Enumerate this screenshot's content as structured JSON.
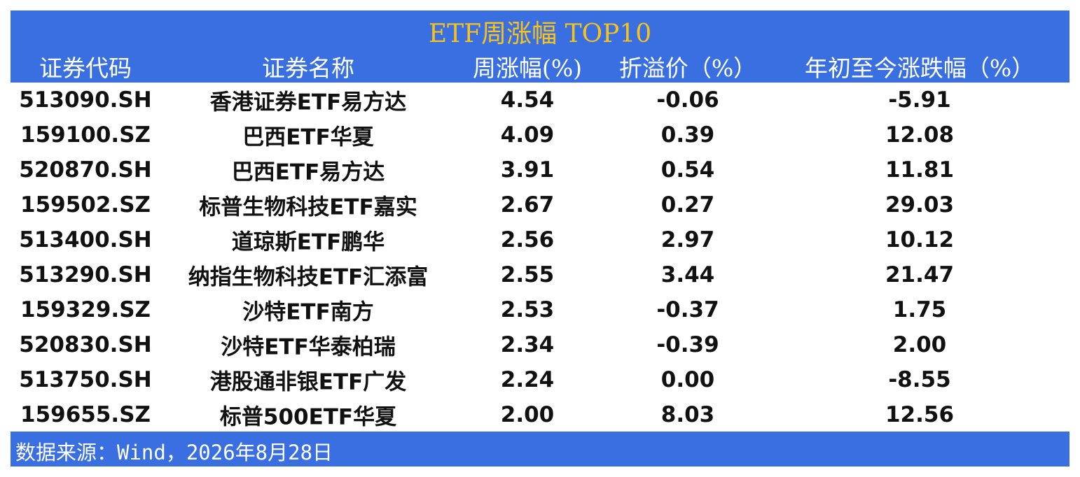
{
  "header": {
    "title": "ETF周涨幅 TOP10"
  },
  "table": {
    "columns": [
      "证券代码",
      "证券名称",
      "周涨幅(%)",
      "折溢价（%）",
      "年初至今涨跌幅（%）"
    ],
    "rows": [
      [
        "513090.SH",
        "香港证券ETF易方达",
        "4.54",
        "-0.06",
        "-5.91"
      ],
      [
        "159100.SZ",
        "巴西ETF华夏",
        "4.09",
        "0.39",
        "12.08"
      ],
      [
        "520870.SH",
        "巴西ETF易方达",
        "3.91",
        "0.54",
        "11.81"
      ],
      [
        "159502.SZ",
        "标普生物科技ETF嘉实",
        "2.67",
        "0.27",
        "29.03"
      ],
      [
        "513400.SH",
        "道琼斯ETF鹏华",
        "2.56",
        "2.97",
        "10.12"
      ],
      [
        "513290.SH",
        "纳指生物科技ETF汇添富",
        "2.55",
        "3.44",
        "21.47"
      ],
      [
        "159329.SZ",
        "沙特ETF南方",
        "2.53",
        "-0.37",
        "1.75"
      ],
      [
        "520830.SH",
        "沙特ETF华泰柏瑞",
        "2.34",
        "-0.39",
        "2.00"
      ],
      [
        "513750.SH",
        "港股通非银ETF广发",
        "2.24",
        "0.00",
        "-8.55"
      ],
      [
        "159655.SZ",
        "标普500ETF华夏",
        "2.00",
        "8.03",
        "12.56"
      ]
    ]
  },
  "footer": {
    "source": "数据来源：Wind，2026年8月28日"
  }
}
